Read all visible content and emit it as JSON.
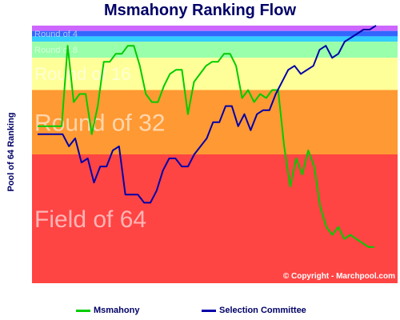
{
  "chart_data": {
    "type": "line",
    "title": "Msmahony Ranking Flow",
    "ylabel": "Pool of 64 Ranking",
    "xlabel": "",
    "ylim": [
      1,
      64
    ],
    "y_inverted": true,
    "bands": [
      {
        "label": "Round of 4",
        "from": 1,
        "to": 4,
        "colors": [
          "#cc66ff",
          "#3366ff",
          "#33ccff"
        ]
      },
      {
        "label": "Round of 8",
        "from": 5,
        "to": 8,
        "colors": [
          "#99ffaa"
        ]
      },
      {
        "label": "Round of 16",
        "from": 9,
        "to": 16,
        "colors": [
          "#ffff99"
        ]
      },
      {
        "label": "Round of 32",
        "from": 17,
        "to": 32,
        "colors": [
          "#ff9933"
        ]
      },
      {
        "label": "Field of 64",
        "from": 33,
        "to": 64,
        "colors": [
          "#ff4444"
        ]
      }
    ],
    "series": [
      {
        "name": "Msmahony",
        "color": "#00cc00",
        "values": [
          25,
          25,
          25,
          25,
          25,
          5,
          19,
          17,
          17,
          27,
          20,
          9,
          9,
          7,
          7,
          5,
          5,
          10,
          17,
          19,
          19,
          15,
          12,
          11,
          11,
          22,
          14,
          12,
          10,
          9,
          9,
          7,
          7,
          10,
          18,
          16,
          19,
          17,
          18,
          16,
          16,
          30,
          40,
          33,
          37,
          31,
          35,
          45,
          50,
          52,
          50,
          53,
          52,
          53,
          54,
          55,
          55
        ]
      },
      {
        "name": "Selection Committee",
        "color": "#0000aa",
        "values": [
          27,
          27,
          27,
          27,
          27,
          30,
          28,
          34,
          33,
          39,
          35,
          35,
          31,
          30,
          42,
          42,
          42,
          44,
          44,
          41,
          36,
          33,
          33,
          35,
          35,
          32,
          30,
          28,
          24,
          24,
          20,
          20,
          25,
          22,
          26,
          22,
          21,
          21,
          17,
          14,
          11,
          10,
          12,
          11,
          10,
          6,
          5,
          8,
          7,
          4,
          3,
          2,
          1,
          1,
          0
        ]
      }
    ],
    "watermark": "© Copyright - Marchpool.com"
  },
  "legend": {
    "items": [
      {
        "label": "Msmahony",
        "color": "#00cc00"
      },
      {
        "label": "Selection Committee",
        "color": "#0000aa"
      }
    ]
  }
}
